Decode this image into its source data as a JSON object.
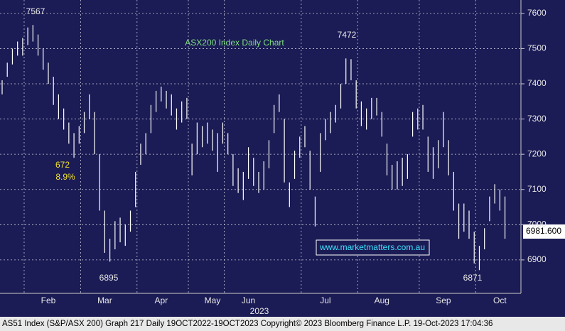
{
  "chart_data": {
    "type": "hilo",
    "title": "ASX200 Index Daily Chart",
    "color": "#ffffff",
    "high": [
      7410,
      7460,
      7500,
      7520,
      7530,
      7560,
      7567,
      7540,
      7500,
      7460,
      7420,
      7370,
      7330,
      7290,
      7260,
      7280,
      7320,
      7370,
      7320,
      7200,
      7040,
      6960,
      7010,
      7020,
      7000,
      7040,
      7150,
      7230,
      7260,
      7340,
      7380,
      7392,
      7380,
      7370,
      7330,
      7350,
      7360,
      7230,
      7290,
      7280,
      7290,
      7270,
      7260,
      7290,
      7260,
      7200,
      7160,
      7150,
      7220,
      7190,
      7150,
      7180,
      7240,
      7340,
      7370,
      7300,
      7120,
      7210,
      7250,
      7280,
      7210,
      7080,
      7260,
      7300,
      7320,
      7340,
      7400,
      7472,
      7470,
      7410,
      7350,
      7330,
      7360,
      7360,
      7320,
      7230,
      7170,
      7180,
      7190,
      7200,
      7320,
      7330,
      7340,
      7250,
      7220,
      7240,
      7320,
      7240,
      7150,
      7060,
      7060,
      7040,
      6980,
      6940,
      6990,
      7080,
      7115,
      7100,
      7080
    ],
    "low": [
      7370,
      7420,
      7455,
      7480,
      7480,
      7510,
      7520,
      7480,
      7440,
      7400,
      7340,
      7300,
      7270,
      7230,
      7190,
      7230,
      7260,
      7300,
      7200,
      7040,
      6920,
      6895,
      6930,
      6950,
      6940,
      6980,
      7050,
      7170,
      7200,
      7260,
      7320,
      7350,
      7330,
      7310,
      7270,
      7290,
      7300,
      7140,
      7200,
      7220,
      7230,
      7210,
      7150,
      7230,
      7200,
      7110,
      7090,
      7070,
      7130,
      7110,
      7090,
      7100,
      7160,
      7260,
      7320,
      7120,
      7050,
      7130,
      7190,
      7220,
      7100,
      6995,
      7150,
      7240,
      7260,
      7290,
      7330,
      7400,
      7410,
      7330,
      7280,
      7270,
      7300,
      7310,
      7250,
      7140,
      7100,
      7100,
      7110,
      7130,
      7250,
      7270,
      7270,
      7150,
      7130,
      7160,
      7220,
      7140,
      7040,
      6960,
      6980,
      6960,
      6890,
      6871,
      6930,
      7010,
      7060,
      7040,
      6960
    ],
    "ylim": [
      6805,
      7638
    ],
    "yticks": [
      6900,
      7000,
      7100,
      7200,
      7300,
      7400,
      7500,
      7600
    ],
    "xticks": [
      {
        "value": 9,
        "label": "Feb"
      },
      {
        "value": 20,
        "label": "Mar"
      },
      {
        "value": 31,
        "label": "Apr"
      },
      {
        "value": 41,
        "label": "May"
      },
      {
        "value": 48,
        "label": "Jun"
      },
      {
        "value": 63,
        "label": "Jul"
      },
      {
        "value": 74,
        "label": "Aug"
      },
      {
        "value": 86,
        "label": "Sep"
      },
      {
        "value": 97,
        "label": "Oct"
      }
    ],
    "year_label": "2023",
    "grid": true,
    "annotations": [
      "7567",
      "7472",
      "6895",
      "6871",
      "672",
      "8.9%"
    ],
    "last_price": "6981.600",
    "watermark": "www.marketmatters.com.au",
    "footer": "AS51 Index (S&P/ASX 200) Graph 217  Daily 19OCT2022-19OCT2023  Copyright© 2023 Bloomberg Finance L.P.  19-Oct-2023 17:04:36"
  }
}
